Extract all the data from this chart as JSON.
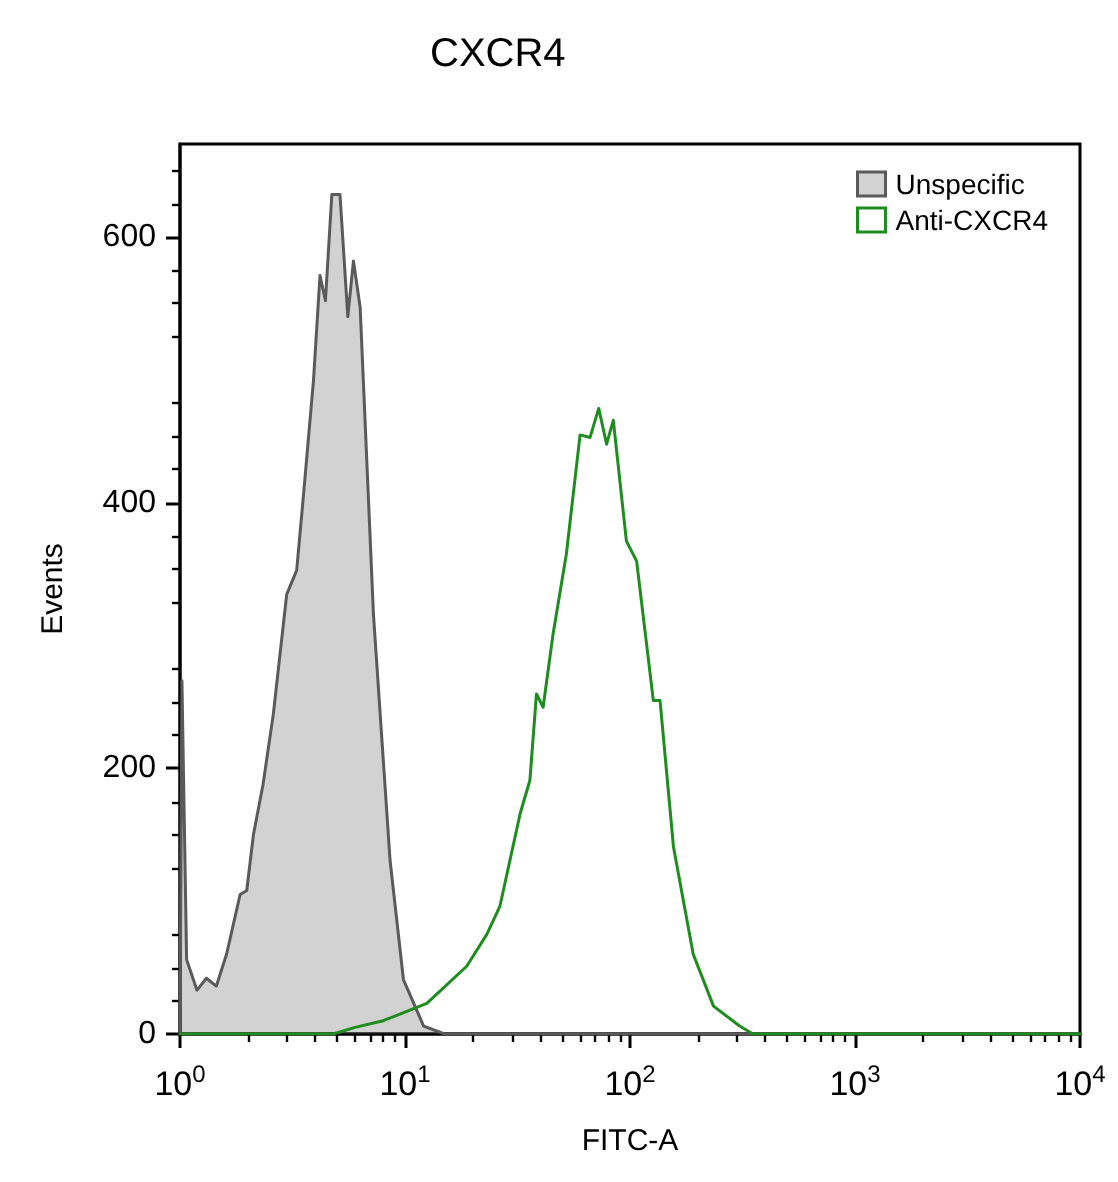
{
  "chart_data": {
    "type": "line",
    "title": "CXCR4",
    "xlabel": "FITC-A",
    "ylabel": "Events",
    "log": "x",
    "xlim": [
      1,
      10000
    ],
    "xticks": [
      {
        "value": 1,
        "label": "10$^{0}$"
      },
      {
        "value": 10,
        "label": "10$^{1}$"
      },
      {
        "value": 100,
        "label": "10$^{2}$"
      },
      {
        "value": 1000,
        "label": "10$^{3}$"
      },
      {
        "value": 10000,
        "label": "10$^{4}$"
      }
    ],
    "ylim": [
      0,
      670
    ],
    "yticks": [
      0,
      200,
      400,
      600
    ],
    "grid": false,
    "legend": "top right",
    "marker": "none",
    "line_style": "solid",
    "series": [
      {
        "name": "Unspecific",
        "type": "area",
        "color": "#5a5a5a",
        "x": [
          1,
          1.02,
          1.07,
          1.19,
          1.31,
          1.45,
          1.61,
          1.85,
          1.98,
          2.12,
          2.34,
          2.6,
          2.98,
          3.3,
          3.54,
          3.92,
          4.19,
          4.43,
          4.73,
          5.14,
          5.57,
          5.9,
          6.32,
          7.24,
          8.58,
          9.84,
          12.1,
          15,
          100,
          1000,
          10000
        ],
        "values": [
          0,
          266,
          56,
          33,
          42,
          36,
          60,
          105,
          108,
          150,
          188,
          241,
          331,
          349,
          406,
          492,
          571,
          552,
          632,
          632,
          540,
          582,
          547,
          316,
          131,
          41,
          6,
          0,
          0,
          0,
          0
        ]
      },
      {
        "name": "Anti-CXCR4",
        "color": "#1e8c1e",
        "x": [
          1,
          4.8,
          6,
          8,
          9.5,
          12.5,
          18.8,
          23.1,
          26.4,
          32.5,
          35.9,
          38.4,
          41.1,
          45.5,
          52.1,
          60,
          66.4,
          72.6,
          78.7,
          84.3,
          96.4,
          107,
          127,
          136,
          156,
          191,
          235,
          307,
          352,
          1000,
          10000
        ],
        "values": [
          0,
          0,
          5,
          10,
          15,
          23,
          51,
          75,
          96,
          166,
          191,
          256,
          246,
          301,
          361,
          451,
          449,
          471,
          444,
          462,
          371,
          356,
          251,
          251,
          141,
          60,
          21,
          6,
          0,
          0,
          0
        ]
      }
    ]
  }
}
